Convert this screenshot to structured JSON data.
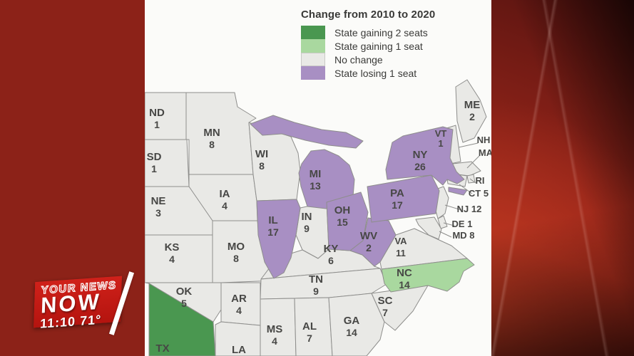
{
  "legend": {
    "title": "Change from 2010 to 2020",
    "items": [
      {
        "key": "gain2",
        "label": "State gaining 2 seats",
        "color": "#4a9750"
      },
      {
        "key": "gain1",
        "label": "State gaining 1 seat",
        "color": "#a9d89f"
      },
      {
        "key": "none",
        "label": "No change",
        "color": "#e9e9e6"
      },
      {
        "key": "lose1",
        "label": "State losing 1 seat",
        "color": "#a88fc3"
      }
    ]
  },
  "map": {
    "states": [
      {
        "abbr": "ND",
        "seats": 1,
        "category": "none"
      },
      {
        "abbr": "SD",
        "seats": 1,
        "category": "none"
      },
      {
        "abbr": "NE",
        "seats": 3,
        "category": "none"
      },
      {
        "abbr": "KS",
        "seats": 4,
        "category": "none"
      },
      {
        "abbr": "OK",
        "seats": 5,
        "category": "none"
      },
      {
        "abbr": "TX",
        "seats": null,
        "category": "gain2"
      },
      {
        "abbr": "MN",
        "seats": 8,
        "category": "none"
      },
      {
        "abbr": "IA",
        "seats": 4,
        "category": "none"
      },
      {
        "abbr": "MO",
        "seats": 8,
        "category": "none"
      },
      {
        "abbr": "AR",
        "seats": 4,
        "category": "none"
      },
      {
        "abbr": "LA",
        "seats": null,
        "category": "none"
      },
      {
        "abbr": "WI",
        "seats": 8,
        "category": "none"
      },
      {
        "abbr": "IL",
        "seats": 17,
        "category": "lose1"
      },
      {
        "abbr": "MI",
        "seats": 13,
        "category": "lose1"
      },
      {
        "abbr": "IN",
        "seats": 9,
        "category": "none"
      },
      {
        "abbr": "OH",
        "seats": 15,
        "category": "lose1"
      },
      {
        "abbr": "KY",
        "seats": 6,
        "category": "none"
      },
      {
        "abbr": "TN",
        "seats": 9,
        "category": "none"
      },
      {
        "abbr": "MS",
        "seats": 4,
        "category": "none"
      },
      {
        "abbr": "AL",
        "seats": 7,
        "category": "none"
      },
      {
        "abbr": "GA",
        "seats": 14,
        "category": "none"
      },
      {
        "abbr": "WV",
        "seats": 2,
        "category": "lose1"
      },
      {
        "abbr": "PA",
        "seats": 17,
        "category": "lose1"
      },
      {
        "abbr": "NY",
        "seats": 26,
        "category": "lose1"
      },
      {
        "abbr": "VA",
        "seats": 11,
        "category": "none"
      },
      {
        "abbr": "NC",
        "seats": 14,
        "category": "gain1"
      },
      {
        "abbr": "SC",
        "seats": 7,
        "category": "none"
      },
      {
        "abbr": "ME",
        "seats": 2,
        "category": "none"
      },
      {
        "abbr": "VT",
        "seats": 1,
        "category": "none"
      },
      {
        "abbr": "NH",
        "seats": null,
        "category": "none"
      },
      {
        "abbr": "MA",
        "seats": null,
        "category": "none"
      },
      {
        "abbr": "RI",
        "seats": null,
        "category": "none"
      },
      {
        "abbr": "CT",
        "seats": 5,
        "category": "none"
      },
      {
        "abbr": "NJ",
        "seats": 12,
        "category": "none"
      },
      {
        "abbr": "DE",
        "seats": 1,
        "category": "none"
      },
      {
        "abbr": "MD",
        "seats": 8,
        "category": "none"
      }
    ]
  },
  "bug": {
    "brand_top": "YOUR NEWS",
    "brand_main": "NOW",
    "time": "11:10",
    "temperature": "71°"
  }
}
